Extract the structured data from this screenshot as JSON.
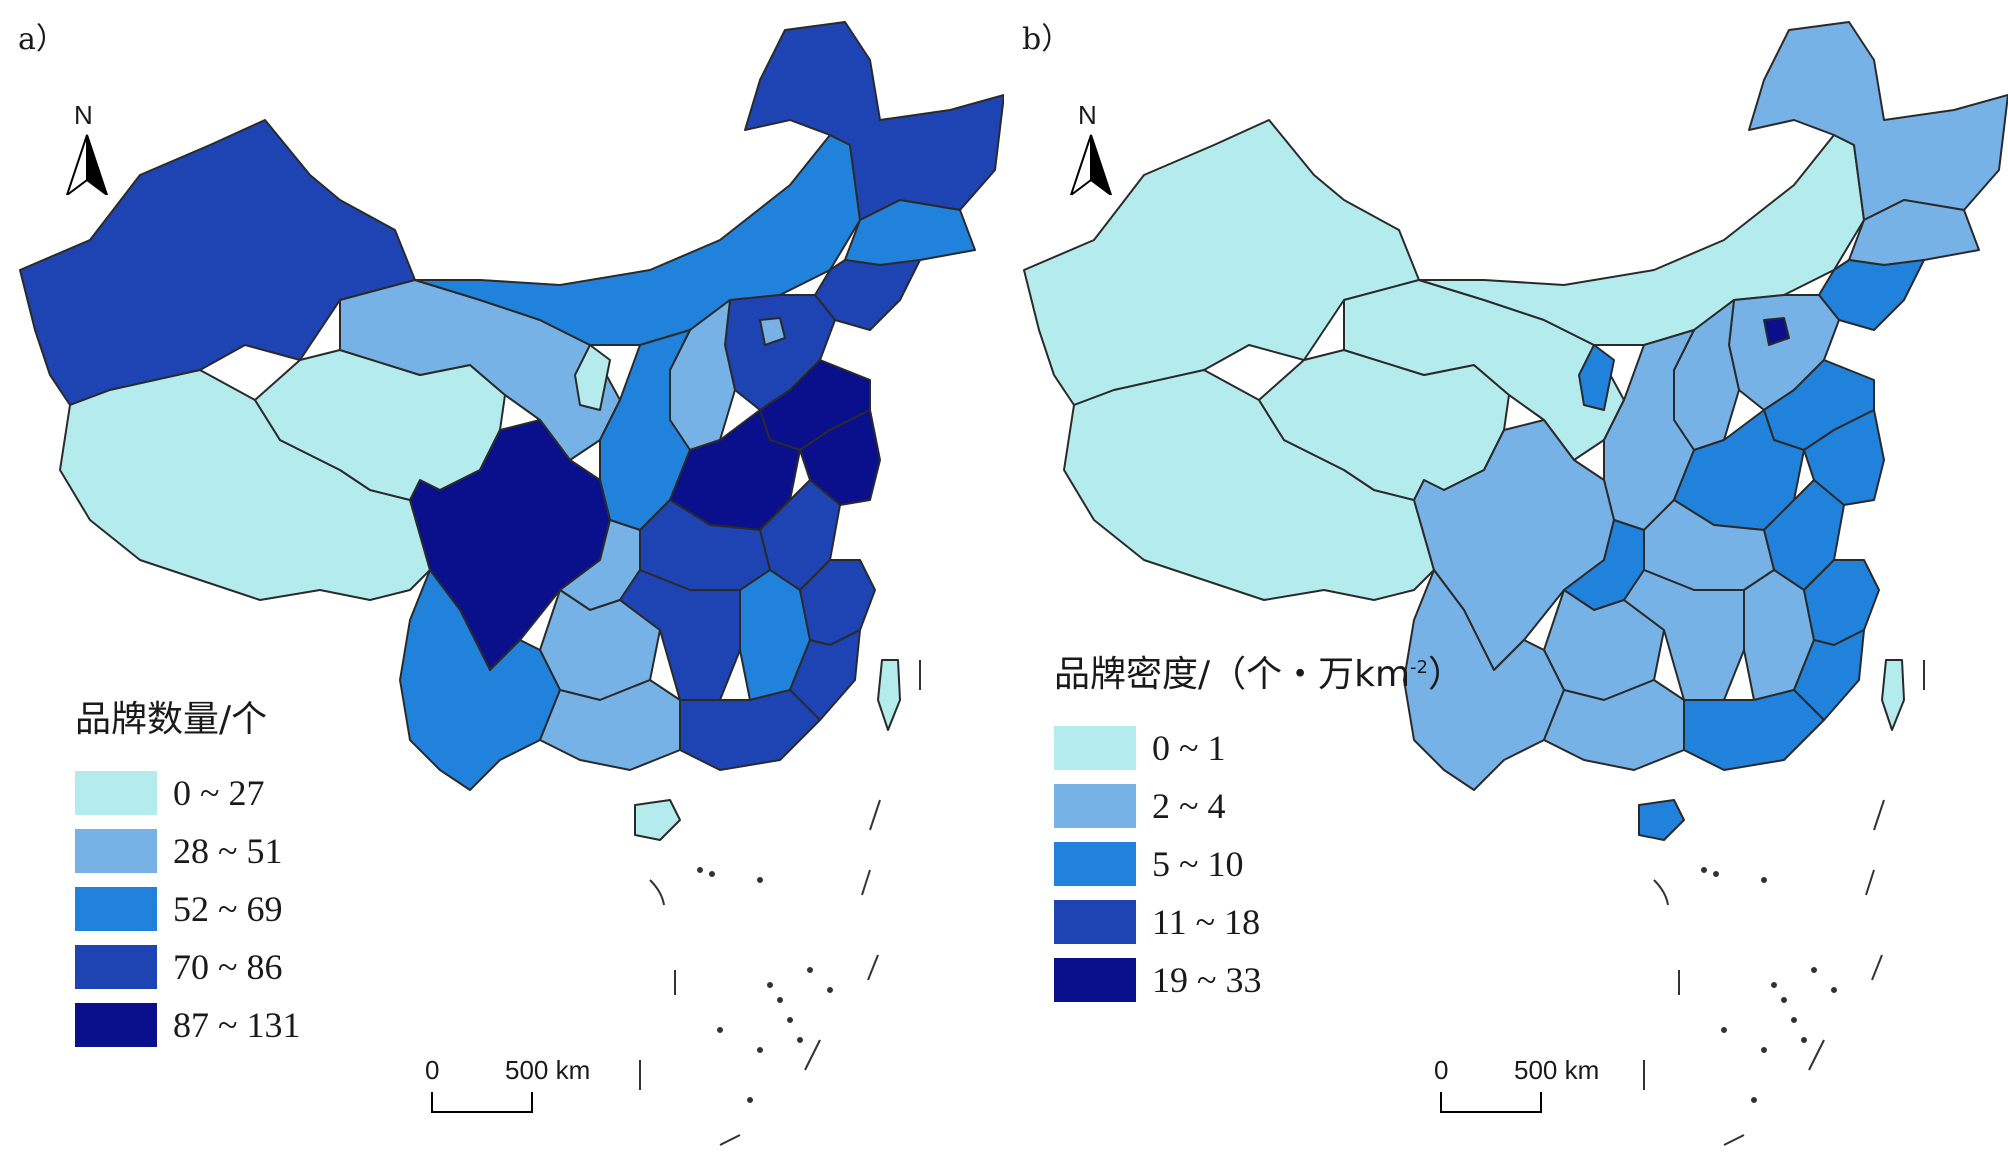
{
  "panels": [
    {
      "label": "a）",
      "legend_title": "品牌数量/个",
      "classes": [
        {
          "range": "0 ~ 27",
          "color": "#b4ecee"
        },
        {
          "range": "28 ~ 51",
          "color": "#76b2e6"
        },
        {
          "range": "52 ~ 69",
          "color": "#2182dc"
        },
        {
          "range": "70 ~ 86",
          "color": "#1e44b4"
        },
        {
          "range": "87 ~ 131",
          "color": "#0a0f8c"
        }
      ],
      "north": "N",
      "scale": {
        "zero": "0",
        "distance": "500 km"
      }
    },
    {
      "label": "b）",
      "legend_title": "品牌密度/（个・万km",
      "legend_title_sup": "-2",
      "legend_title_close": "）",
      "classes": [
        {
          "range": "0 ~ 1",
          "color": "#b4ecee"
        },
        {
          "range": "2 ~ 4",
          "color": "#76b2e6"
        },
        {
          "range": "5 ~ 10",
          "color": "#2182dc"
        },
        {
          "range": "11 ~ 18",
          "color": "#1e44b4"
        },
        {
          "range": "19 ~ 33",
          "color": "#0a0f8c"
        }
      ],
      "north": "N",
      "scale": {
        "zero": "0",
        "distance": "500 km"
      }
    }
  ],
  "map_regions": {
    "a": {
      "xinjiang": 3,
      "tibet": 0,
      "qinghai": 0,
      "gansu": 1,
      "inner_mongolia": 2,
      "heilongjiang": 3,
      "jilin": 2,
      "liaoning": 3,
      "hebei": 3,
      "shanxi": 1,
      "shaanxi": 2,
      "ningxia": 0,
      "shandong": 4,
      "henan": 4,
      "jiangsu": 4,
      "anhui": 3,
      "hubei": 3,
      "sichuan": 4,
      "chongqing": 1,
      "guizhou": 1,
      "yunnan": 2,
      "hunan": 3,
      "jiangxi": 2,
      "zhejiang": 3,
      "fujian": 3,
      "guangdong": 3,
      "guangxi": 1,
      "hainan": 0,
      "taiwan": 0,
      "beijing": 1
    },
    "b": {
      "xinjiang": 0,
      "tibet": 0,
      "qinghai": 0,
      "gansu": 0,
      "inner_mongolia": 0,
      "heilongjiang": 1,
      "jilin": 1,
      "liaoning": 2,
      "hebei": 1,
      "shanxi": 1,
      "shaanxi": 1,
      "ningxia": 2,
      "shandong": 2,
      "henan": 2,
      "jiangsu": 2,
      "anhui": 2,
      "hubei": 1,
      "sichuan": 1,
      "chongqing": 2,
      "guizhou": 1,
      "yunnan": 1,
      "hunan": 1,
      "jiangxi": 1,
      "zhejiang": 2,
      "fujian": 2,
      "guangdong": 2,
      "guangxi": 1,
      "hainan": 2,
      "taiwan": 0,
      "beijing": 4
    }
  }
}
